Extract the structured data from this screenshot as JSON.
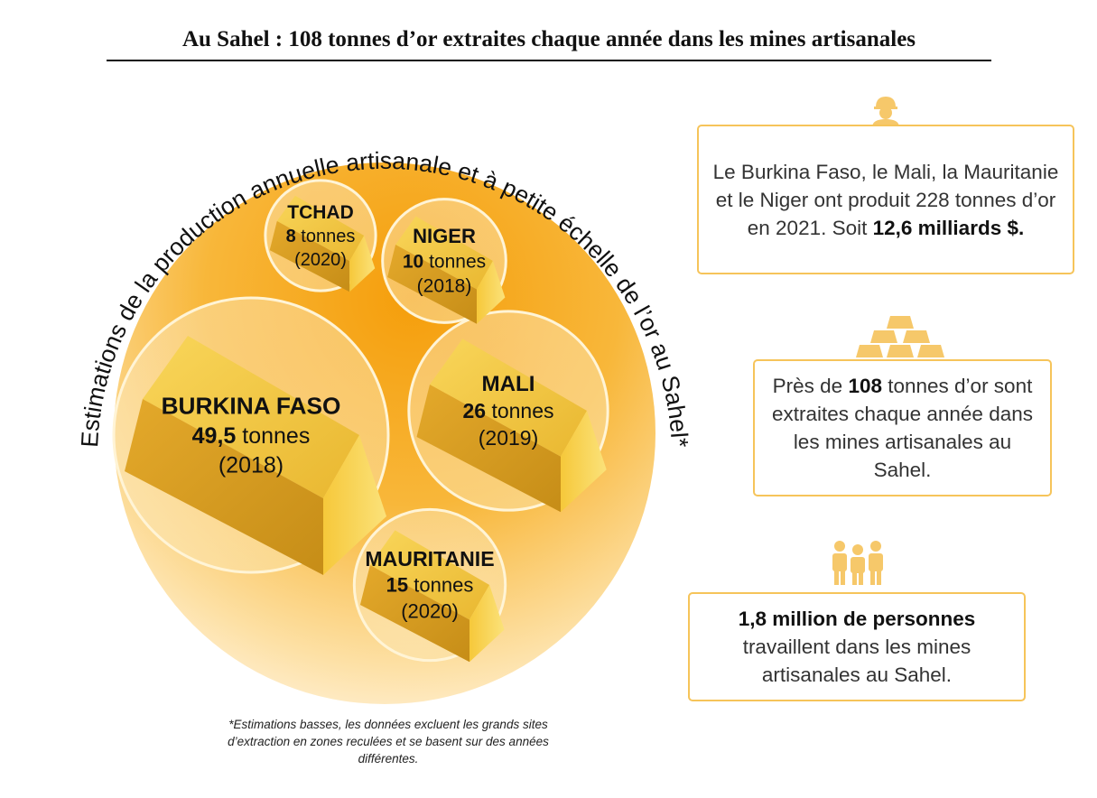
{
  "title": "Au Sahel : 108 tonnes d’or extraites chaque année dans les mines artisanales",
  "chart_data": {
    "type": "bubble",
    "arc_title": "Estimations de la production annuelle artisanale et à petite échelle de l’or au Sahel*",
    "unit": "tonnes",
    "bubbles": [
      {
        "name": "BURKINA FASO",
        "value": 49.5,
        "value_label": "49,5",
        "year": "(2018)"
      },
      {
        "name": "MALI",
        "value": 26,
        "value_label": "26",
        "year": "(2019)"
      },
      {
        "name": "MAURITANIE",
        "value": 15,
        "value_label": "15",
        "year": "(2020)"
      },
      {
        "name": "NIGER",
        "value": 10,
        "value_label": "10",
        "year": "(2018)"
      },
      {
        "name": "TCHAD",
        "value": 8,
        "value_label": "8",
        "year": "(2020)"
      }
    ],
    "colors": {
      "accent": "#f5a623",
      "gold": "#f2c12e",
      "gold_dark": "#c9931a"
    }
  },
  "footnote": "*Estimations basses, les données excluent les grands sites d’extraction en zones reculées et se basent sur des années différentes.",
  "facts": [
    {
      "icon": "miner-icon",
      "pre": "Le Burkina Faso, le Mali, la Mauritanie et le Niger ont produit 228 tonnes d’or en 2021. Soit ",
      "bold": "12,6 milliards $.",
      "post": ""
    },
    {
      "icon": "gold-bars-icon",
      "pre": "Près de ",
      "bold": "108",
      "post": " tonnes d’or sont extraites chaque année dans les mines artisanales au Sahel."
    },
    {
      "icon": "people-icon",
      "pre": "",
      "bold": "1,8 million de personnes",
      "post": " travaillent dans les mines artisanales au Sahel."
    }
  ]
}
